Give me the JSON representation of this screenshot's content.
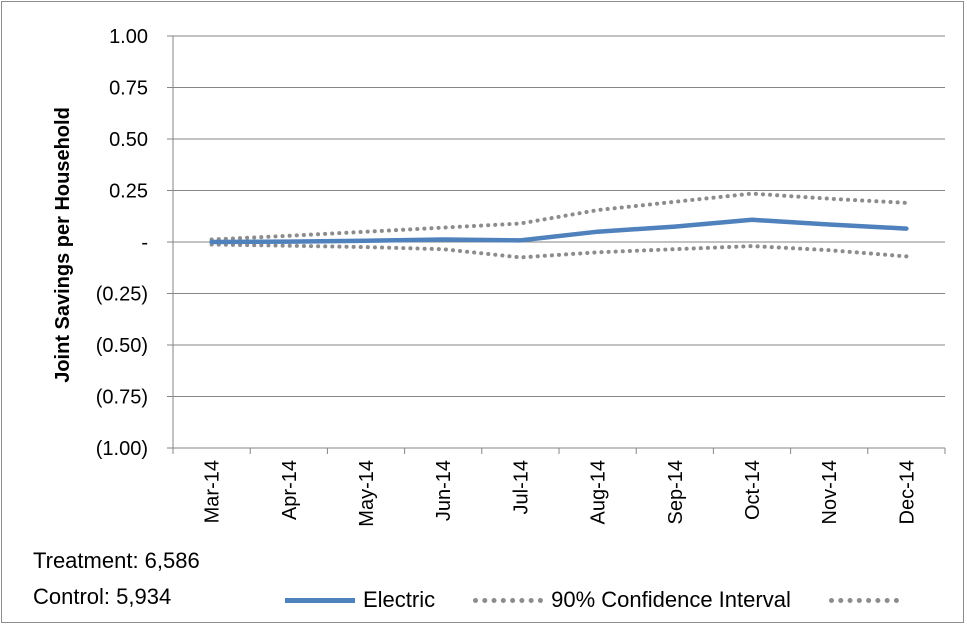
{
  "chart_data": {
    "type": "line",
    "categories": [
      "Mar-14",
      "Apr-14",
      "May-14",
      "Jun-14",
      "Jul-14",
      "Aug-14",
      "Sep-14",
      "Oct-14",
      "Nov-14",
      "Dec-14"
    ],
    "ylabel": "Joint Savings per Household",
    "ylim": [
      -1.0,
      1.0
    ],
    "y_ticks": [
      1.0,
      0.75,
      0.5,
      0.25,
      0,
      -0.25,
      -0.5,
      -0.75,
      -1.0
    ],
    "y_tick_labels": [
      "1.00",
      "0.75",
      "0.50",
      "0.25",
      "-",
      "(0.25)",
      "(0.50)",
      "(0.75)",
      "(1.00)"
    ],
    "grid": true,
    "legend_position": "bottom",
    "series": [
      {
        "name": "Electric",
        "style": "solid",
        "color": "#4f81bd",
        "values": [
          0.0,
          0.002,
          0.006,
          0.012,
          0.008,
          0.05,
          0.075,
          0.108,
          0.085,
          0.065
        ]
      },
      {
        "name": "90% Confidence Interval",
        "style": "dotted",
        "color": "#8c8c8c",
        "values": [
          0.012,
          0.03,
          0.05,
          0.07,
          0.09,
          0.155,
          0.195,
          0.235,
          0.21,
          0.19
        ]
      },
      {
        "name": "",
        "style": "dotted",
        "color": "#8c8c8c",
        "values": [
          -0.012,
          -0.018,
          -0.025,
          -0.035,
          -0.075,
          -0.05,
          -0.035,
          -0.02,
          -0.04,
          -0.07
        ]
      }
    ]
  },
  "notes": {
    "treatment": "Treatment: 6,586",
    "control": "Control: 5,934"
  },
  "legend": {
    "electric": "Electric",
    "ci": "90% Confidence Interval"
  }
}
